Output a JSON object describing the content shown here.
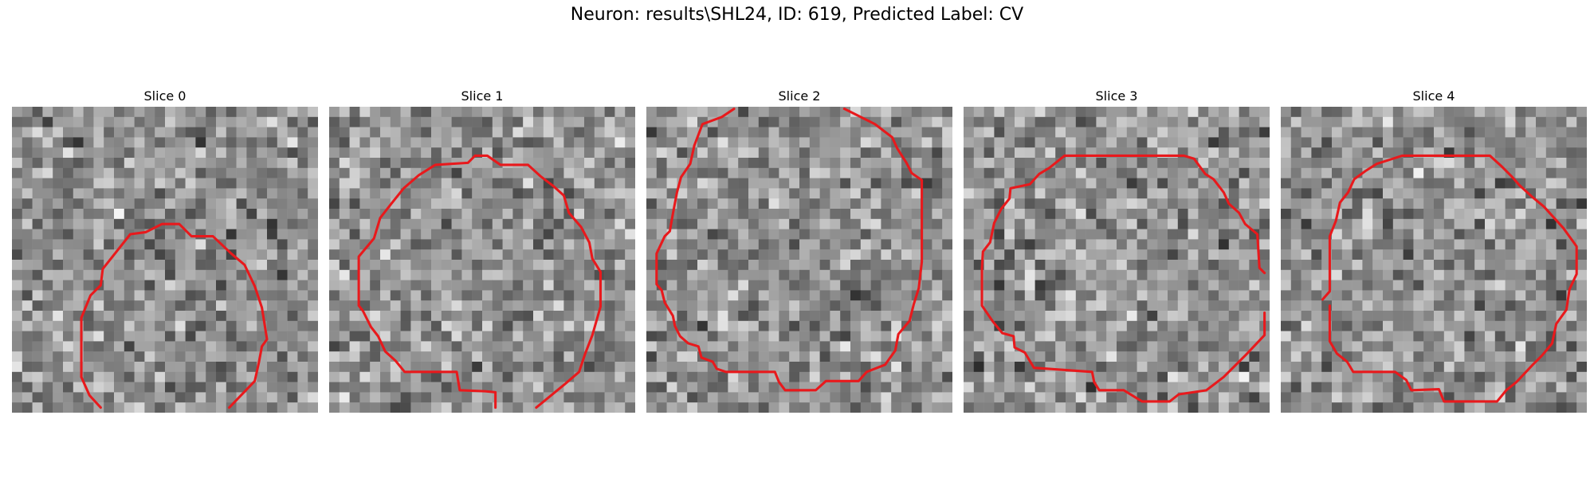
{
  "figure": {
    "title": "Neuron: results\\SHL24, ID: 619, Predicted Label: CV"
  },
  "panels": [
    {
      "title": "Slice 0",
      "contour_color": "#e8191c",
      "colormap": "gray"
    },
    {
      "title": "Slice 1",
      "contour_color": "#e8191c",
      "colormap": "gray"
    },
    {
      "title": "Slice 2",
      "contour_color": "#e8191c",
      "colormap": "gray"
    },
    {
      "title": "Slice 3",
      "contour_color": "#e8191c",
      "colormap": "gray"
    },
    {
      "title": "Slice 4",
      "contour_color": "#e8191c",
      "colormap": "gray"
    }
  ]
}
